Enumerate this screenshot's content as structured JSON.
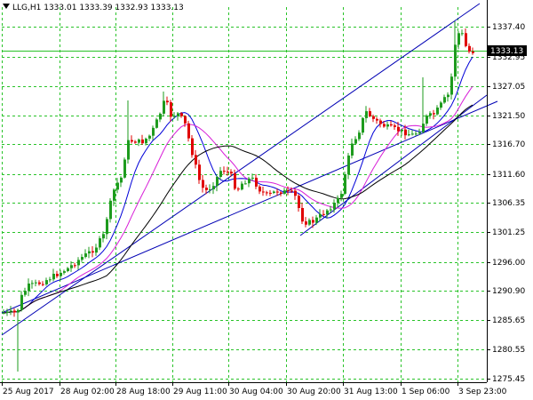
{
  "header": {
    "symbol_label": "LLG,H1",
    "ohlc": [
      "1333.01",
      "1333.39",
      "1332.93",
      "1333.13"
    ]
  },
  "colors": {
    "background": "#ffffff",
    "grid": "#29c329",
    "bull": "#1e9b1e",
    "bear": "#e00000",
    "ma_fast": "#0000d8",
    "ma_mid": "#d81fd8",
    "ma_slow": "#000000",
    "channel": "#0000b4",
    "price_label_bg": "#000000",
    "price_label_text": "#ffffff"
  },
  "current_price": "1333.13",
  "chart_data": {
    "type": "candlestick",
    "y_ticks": [
      "1337.40",
      "1332.95",
      "1327.05",
      "1321.50",
      "1316.70",
      "1311.60",
      "1306.35",
      "1301.25",
      "1296.00",
      "1290.90",
      "1285.65",
      "1280.55",
      "1275.45"
    ],
    "x_ticks": [
      "25 Aug 2017",
      "28 Aug 02:00",
      "28 Aug 18:00",
      "29 Aug 11:00",
      "30 Aug 04:00",
      "30 Aug 20:00",
      "31 Aug 13:00",
      "1 Sep 06:00",
      "3 Sep 23:00"
    ],
    "ylim": [
      1275.45,
      1340.0
    ],
    "grid": true,
    "overlays": [
      "moving average (blue)",
      "moving average (magenta)",
      "moving average (black)",
      "rising channel lines (blue)"
    ]
  }
}
